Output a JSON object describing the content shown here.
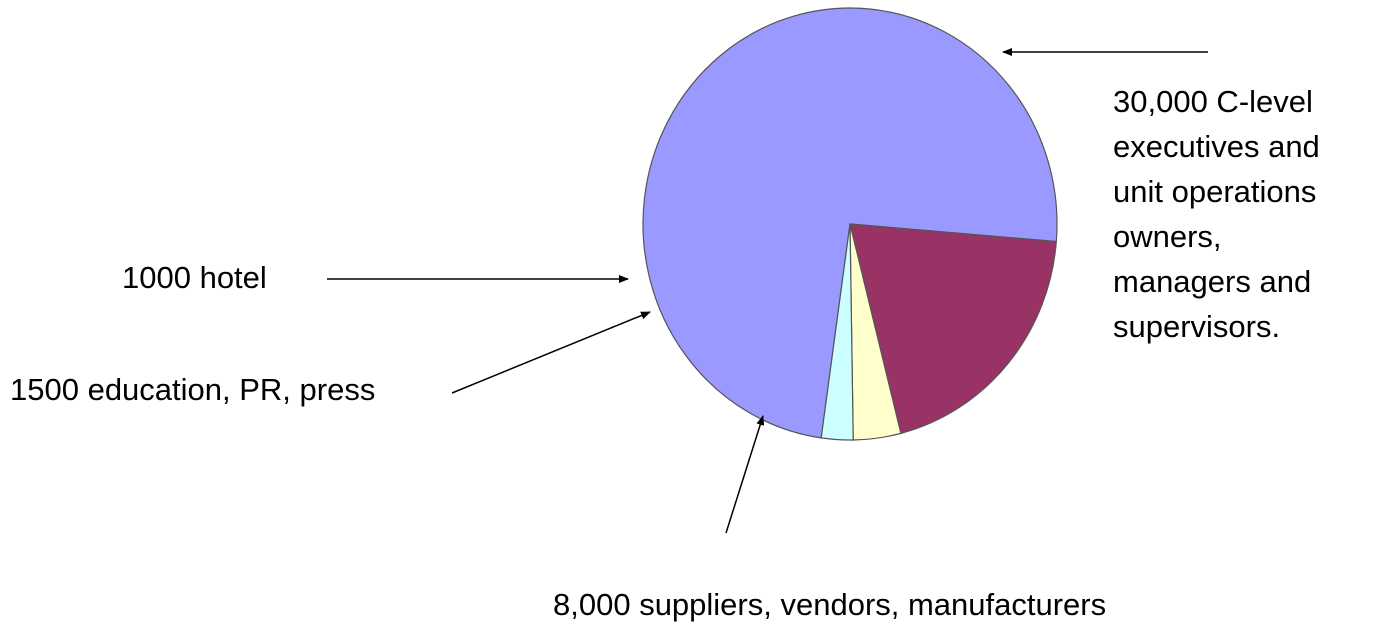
{
  "chart_data": {
    "type": "pie",
    "title": "",
    "start_angle_deg": 262,
    "direction": "clockwise",
    "slices": [
      {
        "value": 30000,
        "label_lines": [
          "30,000 C-level",
          "executives and",
          "unit operations",
          "owners,",
          "managers and",
          "supervisors."
        ],
        "color": "#9999ff"
      },
      {
        "value": 8000,
        "label_lines": [
          "8,000 suppliers, vendors, manufacturers"
        ],
        "color": "#993366"
      },
      {
        "value": 1500,
        "label_lines": [
          "1500 education, PR, press"
        ],
        "color": "#ffffcc"
      },
      {
        "value": 1000,
        "label_lines": [
          "1000 hotel"
        ],
        "color": "#ccffff"
      }
    ],
    "slice_stroke_color": "#555555",
    "legend": "none",
    "grid": false
  }
}
